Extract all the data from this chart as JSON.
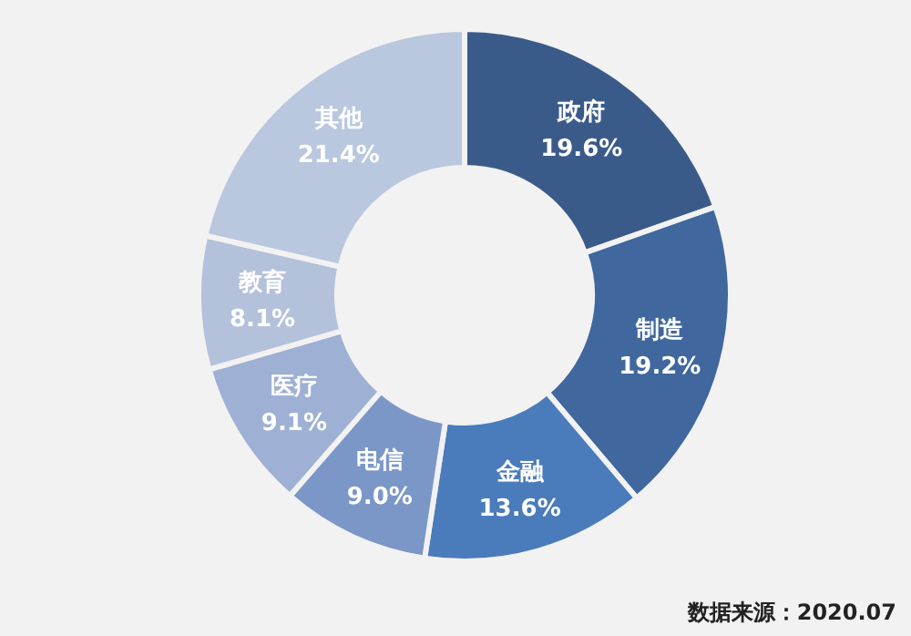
{
  "chart_data": {
    "type": "donut",
    "categories": [
      "政府",
      "制造",
      "金融",
      "电信",
      "医疗",
      "教育",
      "其他"
    ],
    "values": [
      19.6,
      19.2,
      13.6,
      9.0,
      9.1,
      8.1,
      21.4
    ],
    "value_labels": [
      "19.6%",
      "19.2%",
      "13.6%",
      "9.0%",
      "9.1%",
      "8.1%",
      "21.4%"
    ],
    "colors": [
      "#3a5b8a",
      "#40679e",
      "#4a7bbb",
      "#7b97c8",
      "#9eb0d3",
      "#b4c1db",
      "#b9c7df"
    ],
    "annotations": [
      "数据来源：2020.07"
    ]
  }
}
